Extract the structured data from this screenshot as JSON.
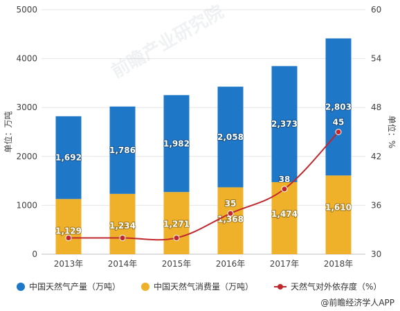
{
  "chart_data": {
    "type": "bar",
    "stacked": true,
    "categories": [
      "2013年",
      "2014年",
      "2015年",
      "2016年",
      "2017年",
      "2018年"
    ],
    "series": [
      {
        "name": "中国天然气产量（万吨）",
        "type": "bar",
        "axis": "left",
        "color": "#1f77c8",
        "values": [
          1692,
          1786,
          1982,
          2058,
          2373,
          2803
        ],
        "labels": [
          "1,692",
          "1,786",
          "1,982",
          "2,058",
          "2,373",
          "2,803"
        ]
      },
      {
        "name": "中国天然气消费量（万吨）",
        "type": "bar",
        "axis": "left",
        "color": "#f0b12a",
        "values": [
          1129,
          1234,
          1271,
          1368,
          1474,
          1610
        ],
        "labels": [
          "1,129",
          "1,234",
          "1,271",
          "1,368",
          "1,474",
          "1,610"
        ]
      },
      {
        "name": "天然气对外依存度（%）",
        "type": "line",
        "axis": "right",
        "color": "#c0272d",
        "values": [
          32,
          32,
          32,
          35,
          38,
          45
        ],
        "labels": [
          "",
          "",
          "",
          "35",
          "38",
          "45"
        ]
      }
    ],
    "ylabel": "单位：万吨",
    "y2label": "单位：%",
    "ylim": [
      0,
      5000
    ],
    "y2lim": [
      30,
      60
    ],
    "yticks": [
      "0",
      "1000",
      "2000",
      "3000",
      "4000",
      "5000"
    ],
    "y2ticks": [
      "30",
      "36",
      "42",
      "48",
      "54",
      "60"
    ],
    "legend_position": "bottom"
  },
  "source": "@前瞻经济学人APP",
  "watermark": "前瞻产业研究院"
}
